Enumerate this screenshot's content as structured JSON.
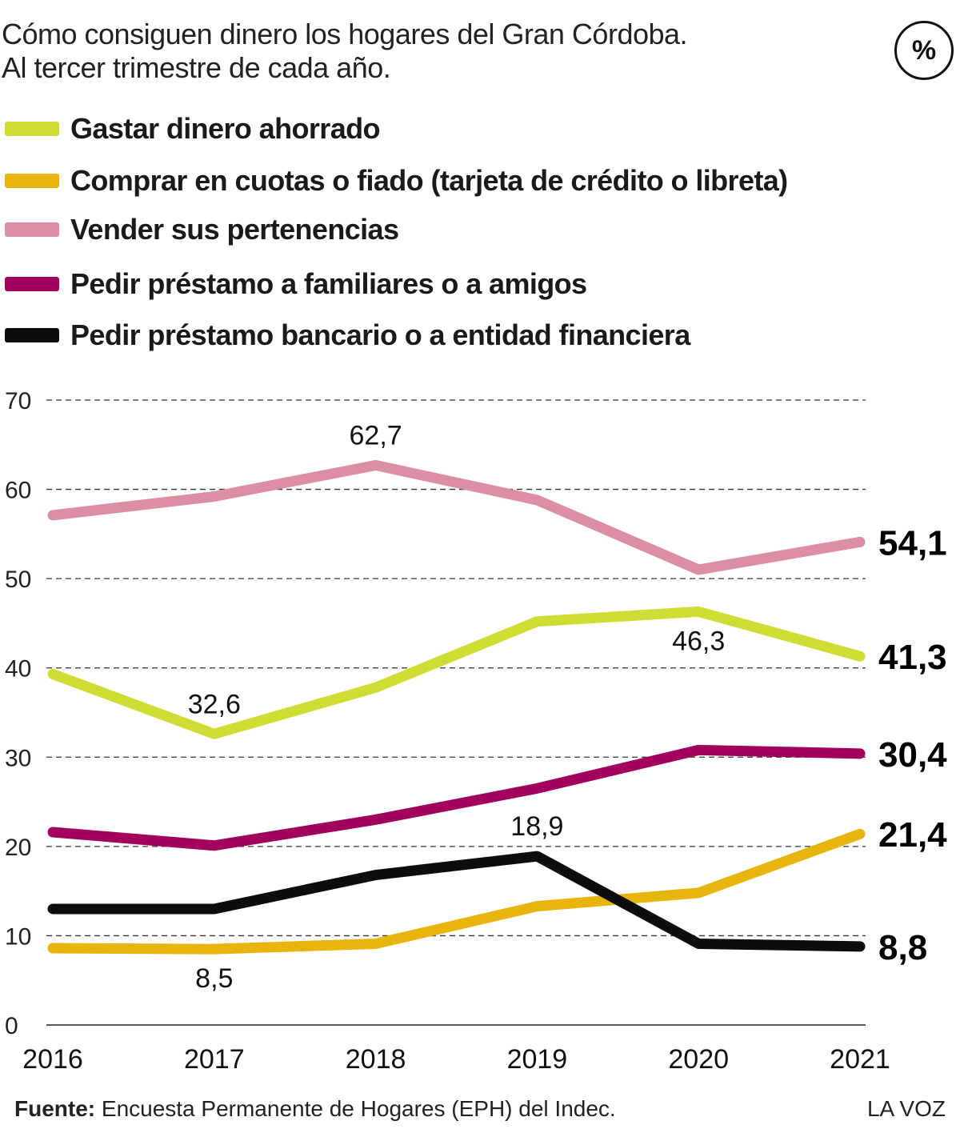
{
  "title_lines": [
    "Cómo consiguen dinero los hogares del Gran Córdoba.",
    "Al tercer trimestre de cada año."
  ],
  "unit_badge": "%",
  "colors": {
    "savings": "#cfdc34",
    "installments": "#e8b50c",
    "sell": "#dc8fa3",
    "family_loan": "#a3015e",
    "bank_loan": "#0d0d0d",
    "grid": "#333333"
  },
  "chart_data": {
    "type": "line",
    "x": [
      "2016",
      "2017",
      "2018",
      "2019",
      "2020",
      "2021"
    ],
    "ylim": [
      0,
      70
    ],
    "y_ticks": [
      "0",
      "10",
      "20",
      "30",
      "40",
      "50",
      "60",
      "70"
    ],
    "grid": "horizontal dashed",
    "legend_position": "top",
    "series": [
      {
        "name": "Gastar dinero ahorrado",
        "color": "#cfdc34",
        "values": [
          39.3,
          32.6,
          37.8,
          45.2,
          46.3,
          41.3
        ]
      },
      {
        "name": "Comprar en cuotas o fiado (tarjeta de crédito o libreta)",
        "color": "#e8b50c",
        "values": [
          8.6,
          8.5,
          9.1,
          13.3,
          14.8,
          21.4
        ]
      },
      {
        "name": "Vender sus pertenencias",
        "color": "#dc8fa3",
        "values": [
          57.1,
          59.2,
          62.7,
          58.8,
          51.0,
          54.1
        ]
      },
      {
        "name": "Pedir préstamo a familiares o a amigos",
        "color": "#a3015e",
        "values": [
          21.6,
          20.1,
          23.0,
          26.5,
          30.8,
          30.4
        ]
      },
      {
        "name": "Pedir préstamo bancario o a entidad financiera",
        "color": "#0d0d0d",
        "values": [
          13.0,
          13.0,
          16.8,
          18.9,
          9.1,
          8.8
        ]
      }
    ],
    "annotations": [
      {
        "text": "62,7",
        "series": 2,
        "index": 2,
        "position": "above"
      },
      {
        "text": "32,6",
        "series": 0,
        "index": 1,
        "position": "above"
      },
      {
        "text": "46,3",
        "series": 0,
        "index": 4,
        "position": "below"
      },
      {
        "text": "18,9",
        "series": 4,
        "index": 3,
        "position": "above"
      },
      {
        "text": "8,5",
        "series": 1,
        "index": 1,
        "position": "below"
      }
    ],
    "end_labels": [
      {
        "text": "54,1",
        "series": 2
      },
      {
        "text": "41,3",
        "series": 0
      },
      {
        "text": "30,4",
        "series": 3
      },
      {
        "text": "21,4",
        "series": 1
      },
      {
        "text": "8,8",
        "series": 4
      }
    ]
  },
  "footer": {
    "source_label": "Fuente:",
    "source_text": " Encuesta Permanente de Hogares (EPH) del Indec.",
    "brand": "LA VOZ"
  }
}
